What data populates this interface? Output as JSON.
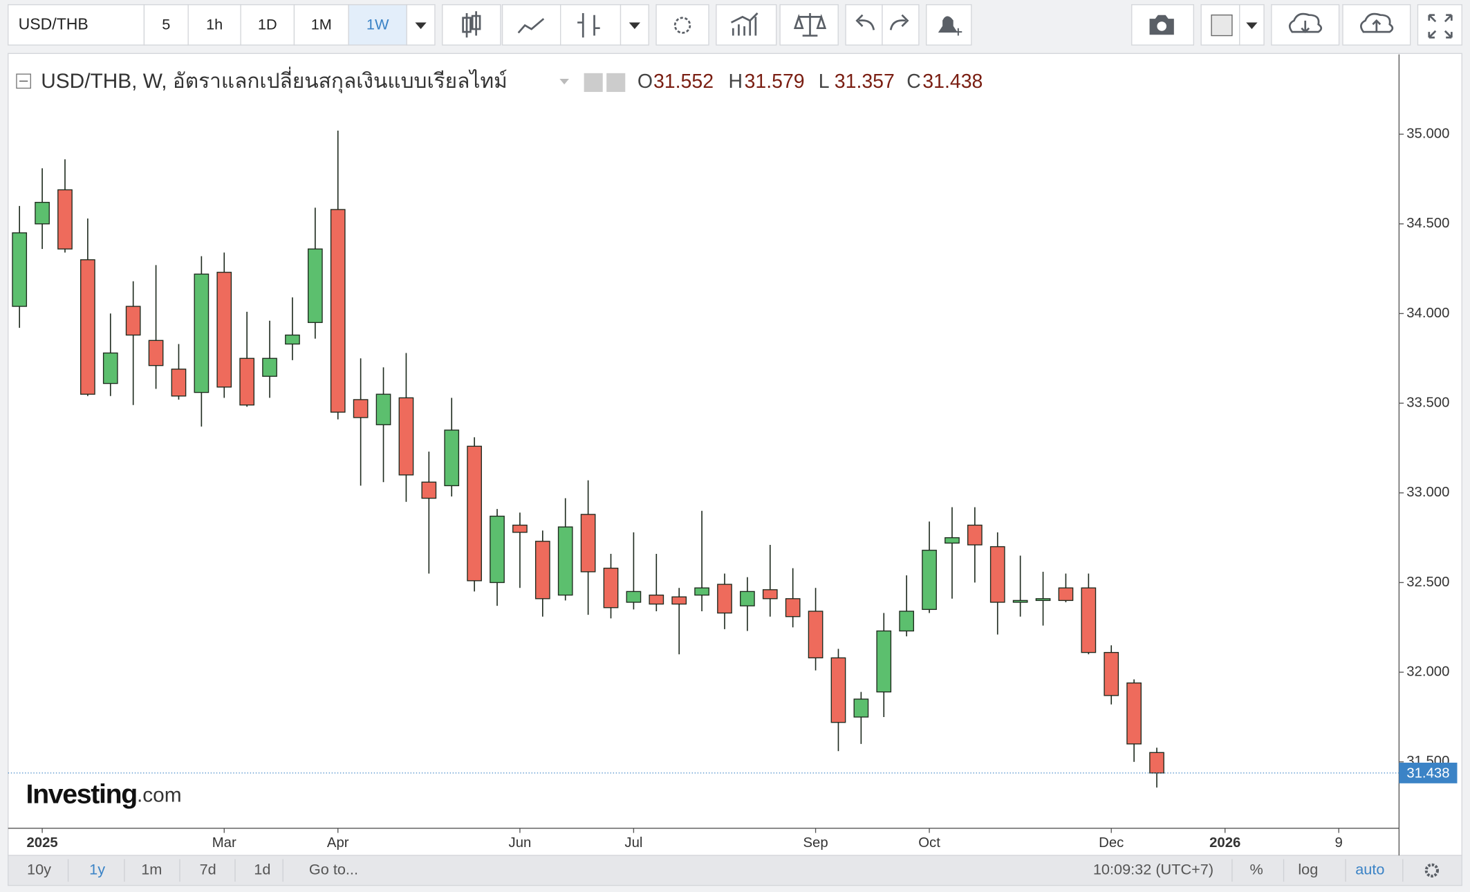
{
  "ui": {
    "toolbar": {
      "symbol": "USD/THB",
      "intervals": [
        "5",
        "1h",
        "1D",
        "1M",
        "1W"
      ]
    },
    "bottom": {
      "ranges": [
        "10y",
        "1y",
        "1m",
        "7d",
        "1d",
        "Go to..."
      ],
      "time": "10:09:32 (UTC+7)",
      "options": [
        "%",
        "log",
        "auto"
      ]
    },
    "logo": {
      "brand": "Investing",
      "suffix": ".com"
    }
  },
  "chart_data": {
    "type": "candlestick",
    "title": "USD/THB, W, อัตราแลกเปลี่ยนสกุลเงินแบบเรียลไทม์",
    "ohlc_labels": [
      "O",
      "H",
      "L",
      "C"
    ],
    "up_color": "#5cbf6e",
    "down_color": "#ee6b5c",
    "x": [
      0,
      1,
      2,
      3,
      4,
      5,
      6,
      7,
      8,
      9,
      10,
      11,
      12,
      13,
      14,
      15,
      16,
      17,
      18,
      19,
      20,
      21,
      22,
      23,
      24,
      25,
      26,
      27,
      28,
      29,
      30,
      31,
      32,
      33,
      34,
      35,
      36,
      37,
      38,
      39,
      40,
      41,
      42,
      43,
      44,
      45,
      46,
      47,
      48,
      49,
      50
    ],
    "open": [
      34.04,
      34.5,
      34.69,
      34.3,
      33.61,
      34.04,
      33.85,
      33.69,
      33.56,
      34.23,
      33.75,
      33.65,
      33.83,
      33.95,
      34.58,
      33.52,
      33.38,
      33.53,
      33.06,
      33.04,
      33.26,
      32.5,
      32.82,
      32.73,
      32.43,
      32.88,
      32.58,
      32.39,
      32.43,
      32.42,
      32.43,
      32.49,
      32.37,
      32.46,
      32.41,
      32.34,
      32.08,
      31.75,
      31.89,
      32.23,
      32.35,
      32.72,
      32.82,
      32.7,
      32.39,
      32.4,
      32.47,
      32.47,
      32.11,
      31.94,
      31.552
    ],
    "high": [
      34.6,
      34.81,
      34.86,
      34.53,
      34.0,
      34.18,
      34.27,
      33.83,
      34.32,
      34.34,
      34.01,
      33.96,
      34.09,
      34.59,
      35.02,
      33.75,
      33.7,
      33.78,
      33.23,
      33.53,
      33.31,
      32.91,
      32.89,
      32.79,
      32.97,
      33.07,
      32.66,
      32.78,
      32.66,
      32.47,
      32.9,
      32.55,
      32.53,
      32.71,
      32.58,
      32.47,
      32.13,
      31.89,
      32.33,
      32.54,
      32.84,
      32.92,
      32.92,
      32.78,
      32.65,
      32.56,
      32.55,
      32.55,
      32.15,
      31.96,
      31.579
    ],
    "low": [
      33.92,
      34.36,
      34.34,
      33.54,
      33.54,
      33.49,
      33.58,
      33.52,
      33.37,
      33.53,
      33.48,
      33.53,
      33.74,
      33.86,
      33.41,
      33.04,
      33.06,
      32.95,
      32.55,
      32.98,
      32.45,
      32.37,
      32.47,
      32.31,
      32.4,
      32.32,
      32.3,
      32.35,
      32.34,
      32.1,
      32.34,
      32.24,
      32.23,
      32.31,
      32.25,
      32.01,
      31.56,
      31.6,
      31.75,
      32.2,
      32.33,
      32.41,
      32.5,
      32.21,
      32.31,
      32.26,
      32.39,
      32.1,
      31.82,
      31.5,
      31.357
    ],
    "close": [
      34.45,
      34.62,
      34.36,
      33.55,
      33.78,
      33.88,
      33.71,
      33.54,
      34.22,
      33.59,
      33.49,
      33.75,
      33.88,
      34.36,
      33.45,
      33.42,
      33.55,
      33.1,
      32.97,
      33.35,
      32.51,
      32.87,
      32.78,
      32.41,
      32.81,
      32.56,
      32.36,
      32.45,
      32.38,
      32.38,
      32.47,
      32.33,
      32.45,
      32.41,
      32.31,
      32.08,
      31.72,
      31.85,
      32.23,
      32.34,
      32.68,
      32.75,
      32.71,
      32.39,
      32.4,
      32.41,
      32.4,
      32.11,
      31.87,
      31.6,
      31.438
    ],
    "xlim": [
      -0.5,
      60.65
    ],
    "xticks": [
      {
        "value": 1,
        "label": "2025"
      },
      {
        "value": 9,
        "label": "Mar"
      },
      {
        "value": 14,
        "label": "Apr"
      },
      {
        "value": 22,
        "label": "Jun"
      },
      {
        "value": 27,
        "label": "Jul"
      },
      {
        "value": 35,
        "label": "Sep"
      },
      {
        "value": 40,
        "label": "Oct"
      },
      {
        "value": 48,
        "label": "Dec"
      },
      {
        "value": 53,
        "label": "2026"
      },
      {
        "value": 58,
        "label": "9"
      }
    ],
    "ylim": [
      31.13,
      35.445
    ],
    "yticks": [
      {
        "value": 31.5,
        "label": "31.500"
      },
      {
        "value": 32,
        "label": "32.000"
      },
      {
        "value": 32.5,
        "label": "32.500"
      },
      {
        "value": 33,
        "label": "33.000"
      },
      {
        "value": 33.5,
        "label": "33.500"
      },
      {
        "value": 34,
        "label": "34.000"
      },
      {
        "value": 34.5,
        "label": "34.500"
      },
      {
        "value": 35,
        "label": "35.000"
      }
    ],
    "grid": false
  }
}
